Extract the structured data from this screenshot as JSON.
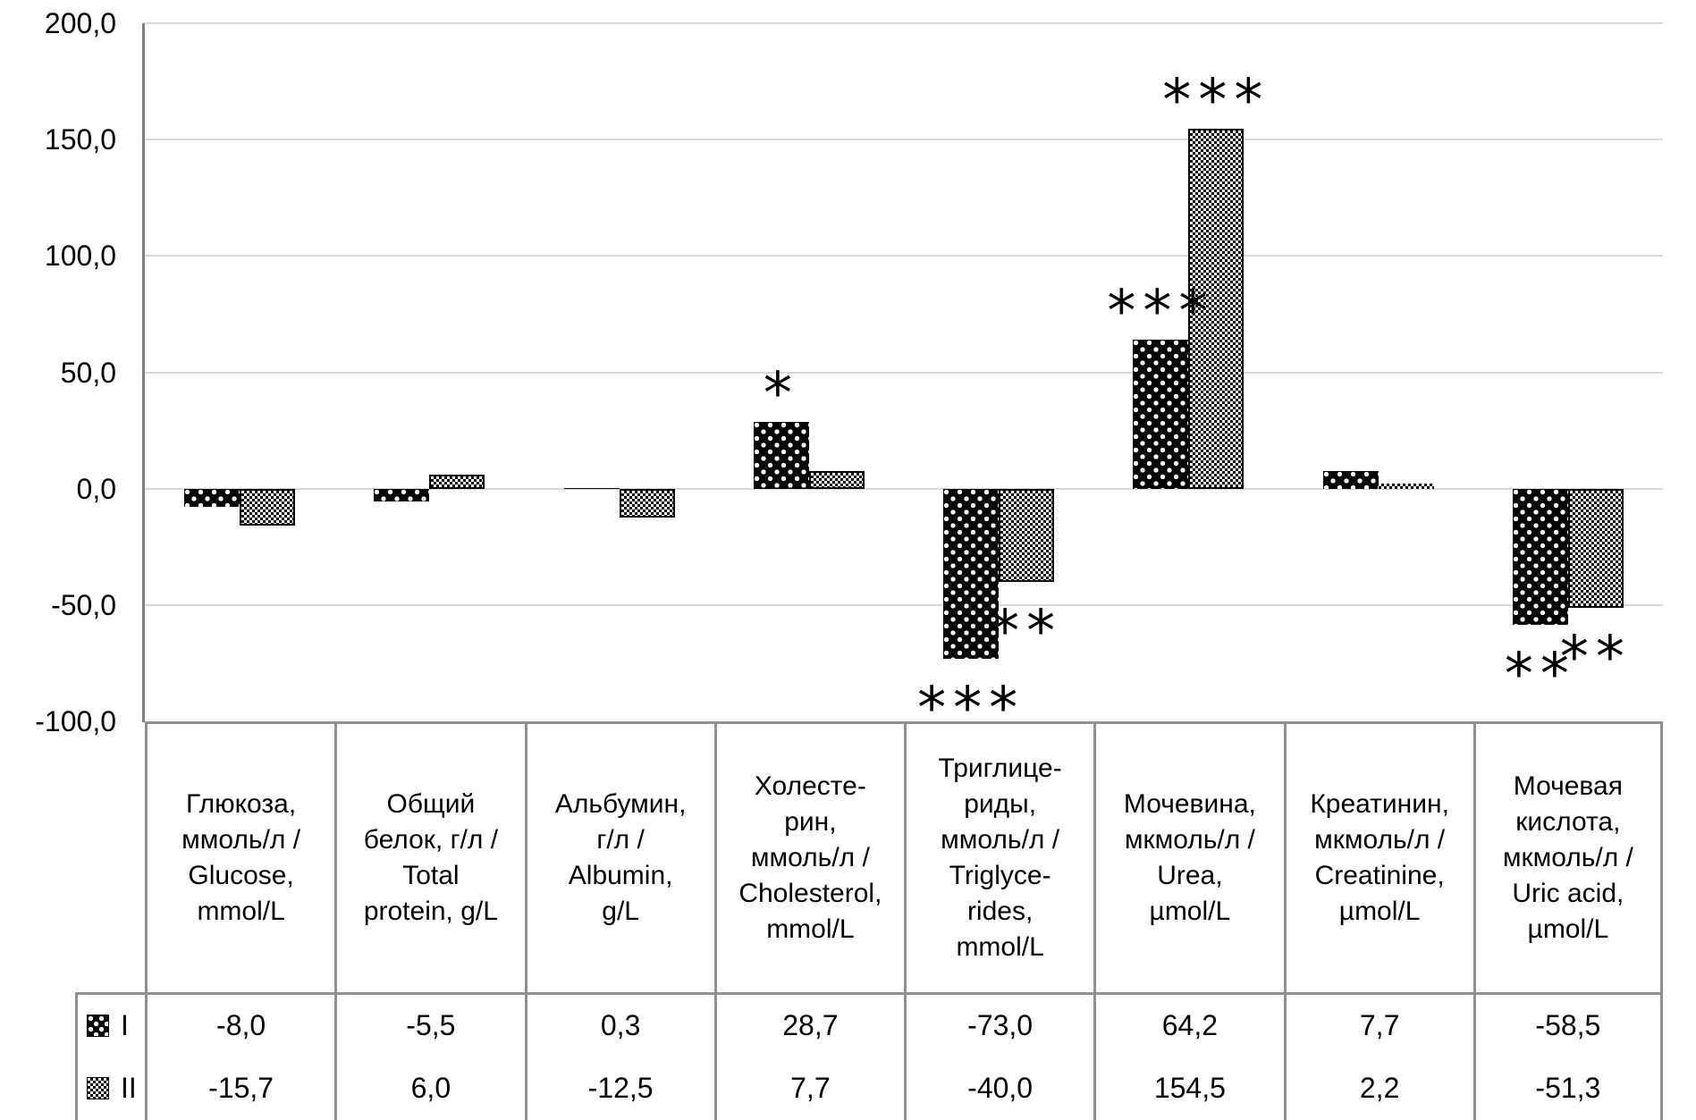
{
  "chart_data": {
    "type": "bar",
    "title": "",
    "xlabel": "",
    "ylabel": "",
    "categories": [
      "Глюкоза,\nммоль/л /\nGlucose,\nmmol/L",
      "Общий\nбелок, г/л /\nTotal\nprotein, g/L",
      "Альбумин,\nг/л /\nAlbumin,\ng/L",
      "Холесте-\nрин,\nммоль/л /\nCholesterol,\nmmol/L",
      "Триглице-\nриды,\nммоль/л /\nTriglyce-\nrides,\nmmol/L",
      "Мочевина,\nмкмоль/л /\nUrea,\nµmol/L",
      "Креатинин,\nмкмоль/л /\nCreatinine,\nµmol/L",
      "Мочевая\nкислота,\nмкмоль/л /\nUric acid,\nµmol/L"
    ],
    "series": [
      {
        "name": "I",
        "pattern": "black-with-white-dots",
        "values": [
          -8.0,
          -5.5,
          0.3,
          28.7,
          -73.0,
          64.2,
          7.7,
          -58.5
        ],
        "labels": [
          "-8,0",
          "-5,5",
          "0,3",
          "28,7",
          "-73,0",
          "64,2",
          "7,7",
          "-58,5"
        ],
        "significance": [
          "",
          "",
          "",
          "*",
          "***",
          "***",
          "",
          "**"
        ]
      },
      {
        "name": "II",
        "pattern": "black-white-checkerboard",
        "values": [
          -15.7,
          6.0,
          -12.5,
          7.7,
          -40.0,
          154.5,
          2.2,
          -51.3
        ],
        "labels": [
          "-15,7",
          "6,0",
          "-12,5",
          "7,7",
          "-40,0",
          "154,5",
          "2,2",
          "-51,3"
        ],
        "significance": [
          "",
          "",
          "",
          "",
          "**",
          "***",
          "",
          "**"
        ]
      }
    ],
    "y_axis": {
      "min": -100,
      "max": 200,
      "tick_labels": [
        "200,0",
        "150,0",
        "100,0",
        "50,0",
        "0,0",
        "-50,0",
        "-100,0"
      ],
      "tick_values": [
        200,
        150,
        100,
        50,
        0,
        -50,
        -100
      ]
    },
    "grid": true,
    "legend_position": "data-table-left-keys"
  },
  "colors": {
    "background": "#ffffff",
    "gridline": "#d9d9d9",
    "axis_line": "#808080",
    "table_border": "#8f8f8f",
    "text": "#000000",
    "bar_ink": "#000000"
  }
}
